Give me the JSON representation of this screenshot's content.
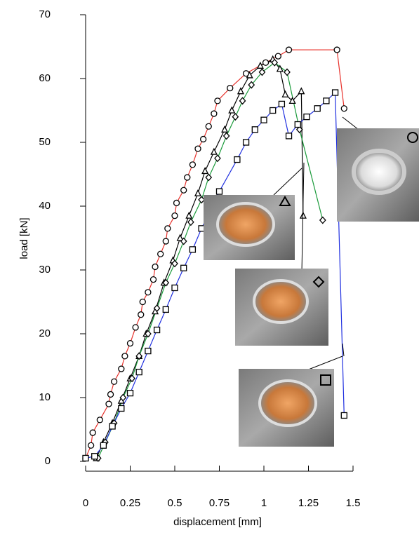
{
  "chart_data": {
    "type": "line",
    "xlabel": "displacement  [mm]",
    "ylabel": "load  [kN]",
    "xlim": [
      0,
      1.5
    ],
    "xticks": [
      0,
      0.25,
      0.5,
      0.75,
      1,
      1.25,
      1.5
    ],
    "ylim": [
      0,
      70
    ],
    "yticks": [
      0,
      10,
      20,
      30,
      40,
      50,
      60,
      70
    ],
    "series": [
      {
        "marker": "circle",
        "color": "#e8302a",
        "x": [
          0,
          0.03,
          0.04,
          0.08,
          0.13,
          0.14,
          0.16,
          0.2,
          0.22,
          0.25,
          0.28,
          0.31,
          0.32,
          0.35,
          0.38,
          0.39,
          0.42,
          0.45,
          0.46,
          0.5,
          0.51,
          0.55,
          0.57,
          0.6,
          0.63,
          0.66,
          0.69,
          0.72,
          0.74,
          0.81,
          0.9,
          1.01,
          1.08,
          1.14,
          1.41,
          1.45
        ],
        "values": [
          0.5,
          2.5,
          4.5,
          6.5,
          9,
          10.5,
          12.5,
          14.5,
          16.5,
          18.5,
          21,
          23,
          25,
          26.5,
          28.5,
          30.5,
          32.5,
          34.5,
          36.5,
          38.5,
          40.5,
          42.5,
          44.5,
          46.5,
          49,
          50.5,
          52.5,
          54.5,
          56.5,
          58.5,
          60.8,
          62.5,
          63.5,
          64.5,
          64.5,
          55.3
        ]
      },
      {
        "marker": "triangle",
        "color": "#000000",
        "x": [
          0.06,
          0.1,
          0.15,
          0.2,
          0.25,
          0.3,
          0.34,
          0.39,
          0.44,
          0.49,
          0.53,
          0.58,
          0.63,
          0.67,
          0.72,
          0.78,
          0.82,
          0.87,
          0.92,
          0.98,
          1.05,
          1.09,
          1.12,
          1.16,
          1.21,
          1.22
        ],
        "values": [
          0.5,
          3,
          6,
          9.5,
          13,
          16.5,
          20,
          23.5,
          28,
          31.5,
          35,
          38.5,
          42,
          45.5,
          48.5,
          52,
          55,
          58,
          60.5,
          62,
          63,
          61.5,
          57.5,
          56.5,
          58,
          38.5
        ]
      },
      {
        "marker": "diamond",
        "color": "#1a9a3a",
        "x": [
          0.07,
          0.11,
          0.16,
          0.21,
          0.26,
          0.3,
          0.35,
          0.4,
          0.45,
          0.5,
          0.55,
          0.59,
          0.65,
          0.69,
          0.74,
          0.79,
          0.84,
          0.88,
          0.93,
          0.99,
          1.06,
          1.13,
          1.2,
          1.33
        ],
        "values": [
          0.5,
          3,
          6,
          10,
          13,
          16.5,
          20,
          24,
          28,
          31,
          34.5,
          37.5,
          41,
          44.5,
          47.5,
          51,
          54,
          56.5,
          59,
          61,
          62.5,
          61,
          52,
          37.8
        ]
      },
      {
        "marker": "square",
        "color": "#2030e0",
        "x": [
          0,
          0.05,
          0.1,
          0.15,
          0.2,
          0.25,
          0.3,
          0.35,
          0.4,
          0.45,
          0.5,
          0.55,
          0.6,
          0.65,
          0.75,
          0.85,
          0.9,
          0.95,
          1.0,
          1.05,
          1.1,
          1.14,
          1.19,
          1.24,
          1.3,
          1.35,
          1.4,
          1.45
        ],
        "values": [
          0.5,
          0.8,
          2.5,
          5.5,
          8.3,
          10.7,
          14,
          17.3,
          20.6,
          23.8,
          27.2,
          30.3,
          33.2,
          36.5,
          42.3,
          47.3,
          50,
          52,
          53.5,
          55,
          56,
          51,
          52.8,
          54,
          55.3,
          56.5,
          57.8,
          7.2
        ]
      }
    ]
  }
}
